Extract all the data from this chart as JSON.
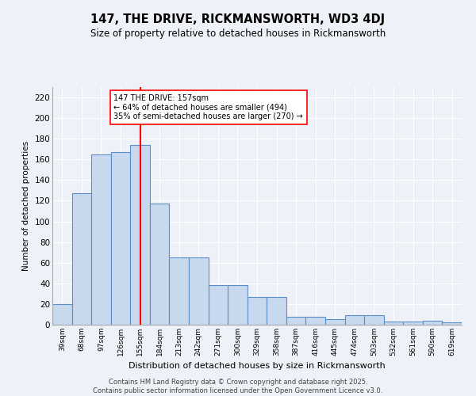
{
  "title": "147, THE DRIVE, RICKMANSWORTH, WD3 4DJ",
  "subtitle": "Size of property relative to detached houses in Rickmansworth",
  "xlabel": "Distribution of detached houses by size in Rickmansworth",
  "ylabel": "Number of detached properties",
  "categories": [
    "39sqm",
    "68sqm",
    "97sqm",
    "126sqm",
    "155sqm",
    "184sqm",
    "213sqm",
    "242sqm",
    "271sqm",
    "300sqm",
    "329sqm",
    "358sqm",
    "387sqm",
    "416sqm",
    "445sqm",
    "474sqm",
    "503sqm",
    "532sqm",
    "561sqm",
    "590sqm",
    "619sqm"
  ],
  "values": [
    20,
    127,
    165,
    167,
    174,
    117,
    65,
    65,
    38,
    38,
    27,
    27,
    8,
    8,
    5,
    9,
    9,
    3,
    3,
    4,
    2
  ],
  "bar_color": "#c9d9ed",
  "bar_edge_color": "#5b8fc9",
  "red_line_index": 4,
  "annotation_text": "147 THE DRIVE: 157sqm\n← 64% of detached houses are smaller (494)\n35% of semi-detached houses are larger (270) →",
  "annotation_box_color": "white",
  "annotation_box_edge": "red",
  "ylim": [
    0,
    230
  ],
  "yticks": [
    0,
    20,
    40,
    60,
    80,
    100,
    120,
    140,
    160,
    180,
    200,
    220
  ],
  "footer_line1": "Contains HM Land Registry data © Crown copyright and database right 2025.",
  "footer_line2": "Contains public sector information licensed under the Open Government Licence v3.0.",
  "bg_color": "#eef2f8",
  "grid_color": "#ffffff"
}
